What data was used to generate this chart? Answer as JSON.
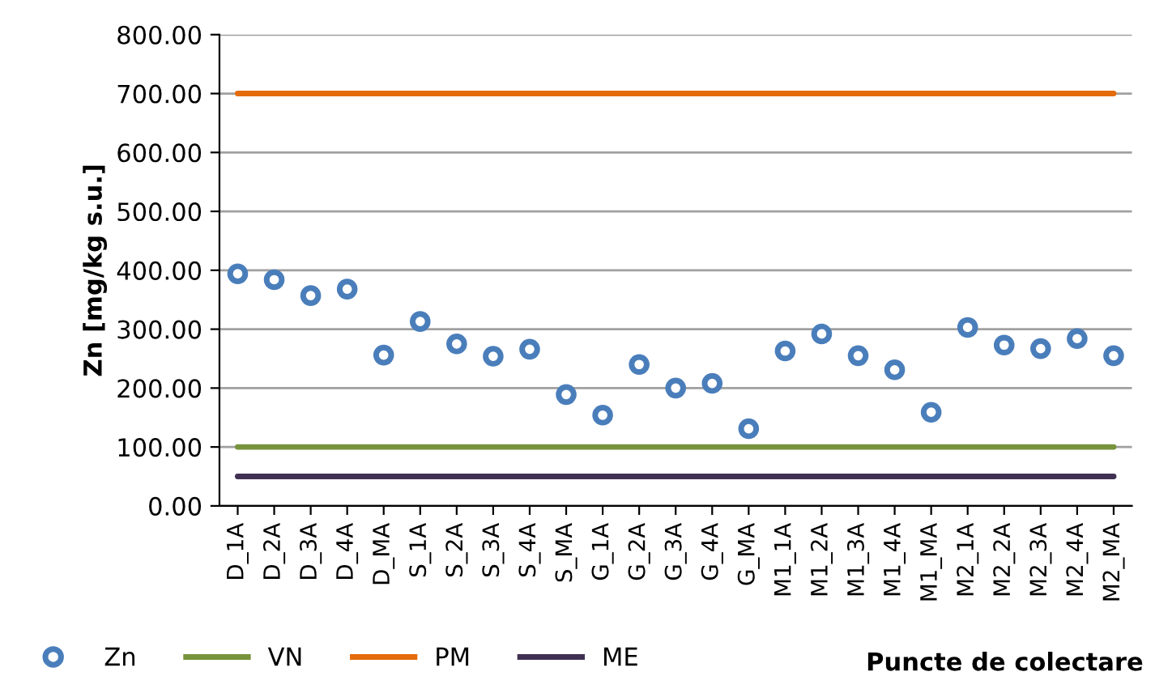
{
  "chart_data": {
    "type": "scatter",
    "ylabel": "Zn [mg/kg s.u.]",
    "xlabel": "Puncte de colectare",
    "categories": [
      "D_1A",
      "D_2A",
      "D_3A",
      "D_4A",
      "D_MA",
      "S_1A",
      "S_2A",
      "S_3A",
      "S_4A",
      "S_MA",
      "G_1A",
      "G_2A",
      "G_3A",
      "G_4A",
      "G_MA",
      "M1_1A",
      "M1_2A",
      "M1_3A",
      "M1_4A",
      "M1_MA",
      "M2_1A",
      "M2_2A",
      "M2_3A",
      "M2_4A",
      "M2_MA"
    ],
    "series": [
      {
        "name": "Zn",
        "color": "#4a7ebb",
        "marker": "circle",
        "values": [
          394,
          384,
          357,
          368,
          256,
          313,
          275,
          254,
          266,
          189,
          154,
          240,
          200,
          208,
          131,
          263,
          292,
          255,
          231,
          159,
          303,
          273,
          267,
          284,
          255
        ]
      },
      {
        "name": "VN",
        "type": "line",
        "color": "#77933c",
        "marker": "none",
        "values": [
          100,
          100,
          100,
          100,
          100,
          100,
          100,
          100,
          100,
          100,
          100,
          100,
          100,
          100,
          100,
          100,
          100,
          100,
          100,
          100,
          100,
          100,
          100,
          100,
          100
        ]
      },
      {
        "name": "PM",
        "type": "line",
        "color": "#e46c0a",
        "marker": "none",
        "values": [
          700,
          700,
          700,
          700,
          700,
          700,
          700,
          700,
          700,
          700,
          700,
          700,
          700,
          700,
          700,
          700,
          700,
          700,
          700,
          700,
          700,
          700,
          700,
          700,
          700
        ]
      },
      {
        "name": "ME",
        "type": "line",
        "color": "#403152",
        "marker": "none",
        "values": [
          50,
          50,
          50,
          50,
          50,
          50,
          50,
          50,
          50,
          50,
          50,
          50,
          50,
          50,
          50,
          50,
          50,
          50,
          50,
          50,
          50,
          50,
          50,
          50,
          50
        ]
      }
    ],
    "ylim": [
      0,
      800
    ],
    "yticks": [
      {
        "value": 0,
        "label": "0.00"
      },
      {
        "value": 100,
        "label": "100.00"
      },
      {
        "value": 200,
        "label": "200.00"
      },
      {
        "value": 300,
        "label": "300.00"
      },
      {
        "value": 400,
        "label": "400.00"
      },
      {
        "value": 500,
        "label": "500.00"
      },
      {
        "value": 600,
        "label": "600.00"
      },
      {
        "value": 700,
        "label": "700.00"
      },
      {
        "value": 800,
        "label": "800.00"
      }
    ],
    "grid": "y",
    "legend": "bottom left"
  }
}
